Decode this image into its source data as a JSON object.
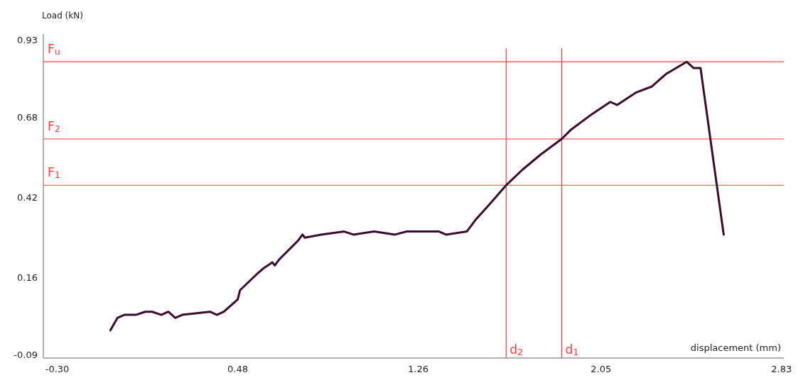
{
  "chart_data": {
    "type": "line",
    "xlabel": "displacement (mm)",
    "ylabel": "Load (kN)",
    "xlim": [
      -0.36,
      2.84
    ],
    "xticks": [
      {
        "value": -0.3,
        "label": "-0.30"
      },
      0.48,
      1.26,
      2.05,
      2.83
    ],
    "ylim": [
      -0.1,
      0.95
    ],
    "yticks": [
      0.93,
      0.68,
      0.42,
      0.16,
      -0.09
    ],
    "grid": false,
    "marker": "none",
    "line_style": "solid",
    "series": [
      {
        "color": "#3b0b30",
        "x": [
          -0.07,
          -0.04,
          -0.01,
          0.04,
          0.08,
          0.11,
          0.15,
          0.18,
          0.21,
          0.24,
          0.36,
          0.39,
          0.42,
          0.48,
          0.49,
          0.56,
          0.59,
          0.63,
          0.64,
          0.66,
          0.74,
          0.76,
          0.77,
          0.84,
          0.94,
          0.98,
          1.07,
          1.16,
          1.21,
          1.35,
          1.38,
          1.47,
          1.51,
          1.57,
          1.64,
          1.71,
          1.79,
          1.88,
          1.92,
          2.01,
          2.09,
          2.12,
          2.2,
          2.27,
          2.33,
          2.42,
          2.45,
          2.48,
          2.58
        ],
        "values": [
          -0.01,
          0.03,
          0.04,
          0.04,
          0.05,
          0.05,
          0.04,
          0.05,
          0.03,
          0.04,
          0.05,
          0.04,
          0.05,
          0.09,
          0.12,
          0.17,
          0.19,
          0.21,
          0.2,
          0.22,
          0.28,
          0.3,
          0.29,
          0.3,
          0.31,
          0.3,
          0.31,
          0.3,
          0.31,
          0.31,
          0.3,
          0.31,
          0.35,
          0.4,
          0.46,
          0.51,
          0.56,
          0.61,
          0.64,
          0.69,
          0.73,
          0.72,
          0.76,
          0.78,
          0.82,
          0.86,
          0.84,
          0.84,
          0.3
        ]
      }
    ],
    "ref_lines": [
      {
        "axis": "y",
        "value": 0.86,
        "label": "F$_{u}$",
        "color": "#ff3b3b",
        "line_style": "solid"
      },
      {
        "axis": "y",
        "value": 0.61,
        "label": "F$_{2}$",
        "color": "#ff3b3b",
        "line_style": "solid"
      },
      {
        "axis": "y",
        "value": 0.46,
        "label": "F$_{1}$",
        "color": "#ff3b3b",
        "line_style": "solid"
      },
      {
        "axis": "x",
        "value": 1.64,
        "label": "d$_{2}$",
        "color": "#ff3b3b",
        "line_style": "solid"
      },
      {
        "axis": "x",
        "value": 1.88,
        "label": "d$_{1}$",
        "color": "#ff3b3b",
        "line_style": "solid"
      }
    ]
  }
}
